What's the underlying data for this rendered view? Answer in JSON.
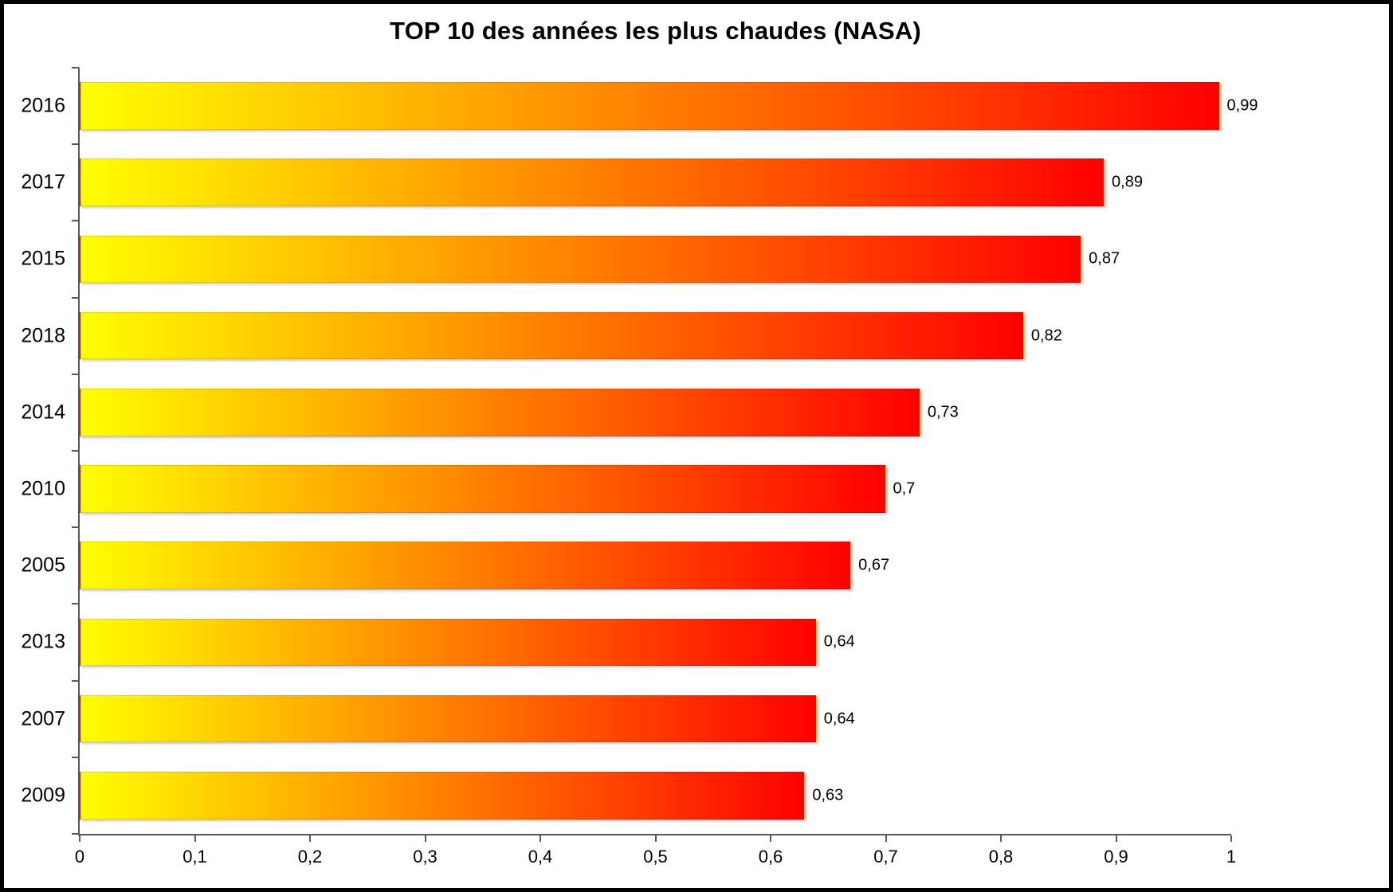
{
  "chart": {
    "title": "TOP 10 des années les plus chaudes (NASA)"
  },
  "chart_data": {
    "type": "bar",
    "orientation": "horizontal",
    "title": "TOP 10 des années les plus chaudes (NASA)",
    "categories": [
      "2016",
      "2017",
      "2015",
      "2018",
      "2014",
      "2010",
      "2005",
      "2013",
      "2007",
      "2009"
    ],
    "values": [
      0.99,
      0.89,
      0.87,
      0.82,
      0.73,
      0.7,
      0.67,
      0.64,
      0.64,
      0.63
    ],
    "value_labels": [
      "0,99",
      "0,89",
      "0,87",
      "0,82",
      "0,73",
      "0,7",
      "0,67",
      "0,64",
      "0,64",
      "0,63"
    ],
    "xlabel": "",
    "ylabel": "",
    "xlim": [
      0,
      1
    ],
    "x_ticks": [
      "0",
      "0,1",
      "0,2",
      "0,3",
      "0,4",
      "0,5",
      "0,6",
      "0,7",
      "0,8",
      "0,9",
      "1"
    ],
    "grid": false,
    "legend": "none",
    "bar_gradient_start": "#ffff00",
    "bar_gradient_end": "#ff0000",
    "axis_color": "#595959",
    "text_color": "#000000"
  }
}
